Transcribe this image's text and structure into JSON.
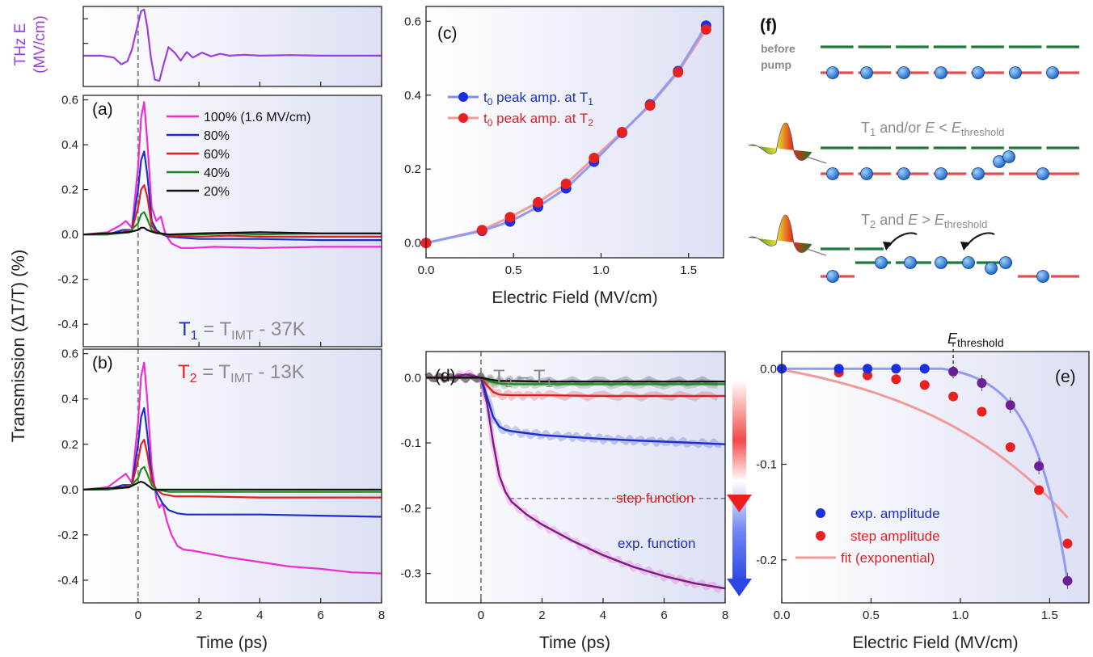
{
  "colors": {
    "magenta": "#ee2bd4",
    "blue": "#1a2fc8",
    "red": "#e02020",
    "green": "#1e8a1e",
    "black": "#111111",
    "violet": "#9a3fe0",
    "gray_text": "#8a8a8a",
    "bg_tint": "#e3e6f6"
  },
  "shared": {
    "ylabel": "Transmission (ΔT/T) (%)",
    "time_xlabel": "Time (ps)",
    "field_xlabel": "Electric Field (MV/cm)"
  },
  "chart_data": [
    {
      "id": "thz",
      "type": "line",
      "ylabel": "THz E (MV/cm)",
      "ylabel_lines": [
        "THz E",
        "(MV/cm)"
      ],
      "xlim": [
        -1.8,
        8
      ],
      "ylim": [
        -1.0,
        1.6
      ],
      "series": [
        {
          "color": "violet",
          "x": [
            -1.8,
            -1.2,
            -0.8,
            -0.55,
            -0.35,
            -0.2,
            0,
            0.1,
            0.2,
            0.3,
            0.42,
            0.55,
            0.7,
            0.85,
            1.0,
            1.2,
            1.4,
            1.6,
            1.8,
            2.1,
            2.4,
            2.7,
            3.0,
            3.5,
            4,
            5,
            6,
            7,
            8
          ],
          "y": [
            0,
            0,
            -0.06,
            -0.28,
            -0.18,
            0.2,
            1.05,
            1.45,
            1.5,
            0.95,
            -0.05,
            -0.78,
            -0.82,
            -0.25,
            0.28,
            0.1,
            -0.16,
            0.12,
            -0.06,
            0.1,
            -0.02,
            0.06,
            0,
            0.03,
            0,
            0.02,
            0,
            0,
            0
          ]
        }
      ]
    },
    {
      "id": "a",
      "type": "line",
      "panel_label": "(a)",
      "xlim": [
        -1.8,
        8
      ],
      "ylim": [
        -0.5,
        0.62
      ],
      "yticks": [
        -0.4,
        -0.2,
        0.0,
        0.2,
        0.4,
        0.6
      ],
      "xticks": [
        0,
        2,
        4,
        6,
        8
      ],
      "annotation": "T1 = TIMT - 37K",
      "legend": [
        "100% (1.6 MV/cm)",
        "80%",
        "60%",
        "40%",
        "20%"
      ],
      "series": [
        {
          "name": "100% (1.6 MV/cm)",
          "color": "magenta",
          "x": [
            -1.8,
            -1.0,
            -0.6,
            -0.4,
            -0.2,
            0,
            0.1,
            0.2,
            0.3,
            0.45,
            0.6,
            0.75,
            0.9,
            1.1,
            1.4,
            1.8,
            2.5,
            4,
            6,
            8
          ],
          "y": [
            0,
            0.01,
            0.04,
            0.06,
            0.03,
            0.3,
            0.52,
            0.59,
            0.42,
            0.12,
            0.06,
            0.08,
            0.0,
            -0.04,
            -0.06,
            -0.06,
            -0.055,
            -0.06,
            -0.055,
            -0.055
          ]
        },
        {
          "name": "80%",
          "color": "blue",
          "x": [
            -1.8,
            -1.0,
            -0.5,
            -0.2,
            0,
            0.1,
            0.2,
            0.3,
            0.45,
            0.6,
            0.8,
            1.0,
            1.5,
            2,
            3,
            4,
            6,
            8
          ],
          "y": [
            0,
            0,
            0.02,
            0.02,
            0.2,
            0.33,
            0.37,
            0.27,
            0.06,
            0.02,
            0.0,
            -0.01,
            -0.015,
            -0.02,
            -0.02,
            -0.02,
            -0.025,
            -0.025
          ]
        },
        {
          "name": "60%",
          "color": "red",
          "x": [
            -1.8,
            -1.0,
            -0.5,
            -0.2,
            0,
            0.1,
            0.2,
            0.3,
            0.45,
            0.6,
            1.0,
            2,
            3,
            4,
            6,
            8
          ],
          "y": [
            0,
            0,
            0.01,
            0.02,
            0.12,
            0.2,
            0.22,
            0.17,
            0.04,
            0.01,
            -0.005,
            -0.01,
            -0.005,
            -0.01,
            -0.01,
            -0.01
          ]
        },
        {
          "name": "40%",
          "color": "green",
          "x": [
            -1.8,
            -1.0,
            -0.3,
            0,
            0.1,
            0.2,
            0.3,
            0.45,
            0.6,
            1,
            2,
            3,
            4,
            6,
            8
          ],
          "y": [
            0,
            0,
            0.01,
            0.05,
            0.09,
            0.1,
            0.07,
            0.02,
            0.005,
            0,
            0,
            0.005,
            0,
            0.005,
            0.005
          ]
        },
        {
          "name": "20%",
          "color": "black",
          "x": [
            -1.8,
            -1.0,
            -0.3,
            0,
            0.1,
            0.2,
            0.3,
            0.5,
            1,
            2,
            4,
            6,
            8
          ],
          "y": [
            0,
            0.005,
            0.01,
            0.02,
            0.03,
            0.03,
            0.02,
            0.01,
            0.0,
            0.005,
            0.01,
            0.005,
            0.005
          ]
        }
      ]
    },
    {
      "id": "b",
      "type": "line",
      "panel_label": "(b)",
      "xlim": [
        -1.8,
        8
      ],
      "ylim": [
        -0.5,
        0.62
      ],
      "yticks": [
        -0.4,
        -0.2,
        0.0,
        0.2,
        0.4,
        0.6
      ],
      "xticks": [
        0,
        2,
        4,
        6,
        8
      ],
      "annotation": "T2 = TIMT - 13K",
      "series": [
        {
          "name": "100%",
          "color": "magenta",
          "x": [
            -1.8,
            -1.0,
            -0.6,
            -0.4,
            -0.2,
            0,
            0.1,
            0.2,
            0.3,
            0.45,
            0.6,
            0.7,
            0.8,
            0.95,
            1.1,
            1.3,
            1.5,
            1.8,
            2.2,
            3,
            4,
            5,
            6,
            7,
            8
          ],
          "y": [
            0,
            0.01,
            0.05,
            0.07,
            0.03,
            0.3,
            0.5,
            0.56,
            0.4,
            0.1,
            -0.04,
            -0.08,
            -0.06,
            -0.14,
            -0.2,
            -0.25,
            -0.265,
            -0.27,
            -0.28,
            -0.3,
            -0.32,
            -0.34,
            -0.35,
            -0.365,
            -0.37
          ]
        },
        {
          "name": "80%",
          "color": "blue",
          "x": [
            -1.8,
            -1.0,
            -0.5,
            -0.2,
            0,
            0.1,
            0.2,
            0.3,
            0.45,
            0.6,
            0.8,
            1.0,
            1.3,
            1.6,
            2,
            3,
            4,
            6,
            8
          ],
          "y": [
            0,
            0,
            0.02,
            0.02,
            0.2,
            0.32,
            0.36,
            0.25,
            0.05,
            -0.01,
            -0.06,
            -0.09,
            -0.105,
            -0.11,
            -0.11,
            -0.11,
            -0.11,
            -0.115,
            -0.12
          ]
        },
        {
          "name": "60%",
          "color": "red",
          "x": [
            -1.8,
            -1.0,
            -0.5,
            -0.2,
            0,
            0.1,
            0.2,
            0.3,
            0.45,
            0.6,
            0.8,
            1.2,
            2,
            4,
            6,
            8
          ],
          "y": [
            0,
            0,
            0.01,
            0.02,
            0.13,
            0.2,
            0.22,
            0.16,
            0.04,
            0.0,
            -0.02,
            -0.03,
            -0.03,
            -0.035,
            -0.035,
            -0.035
          ]
        },
        {
          "name": "40%",
          "color": "green",
          "x": [
            -1.8,
            -1.0,
            -0.3,
            0,
            0.1,
            0.2,
            0.3,
            0.45,
            0.6,
            1,
            2,
            4,
            6,
            8
          ],
          "y": [
            0,
            0,
            0.01,
            0.05,
            0.09,
            0.1,
            0.07,
            0.02,
            0.0,
            -0.01,
            -0.01,
            -0.01,
            -0.01,
            -0.01
          ]
        },
        {
          "name": "20%",
          "color": "black",
          "x": [
            -1.8,
            -1.0,
            -0.3,
            0,
            0.1,
            0.2,
            0.3,
            0.5,
            1,
            2,
            4,
            6,
            8
          ],
          "y": [
            0,
            0.005,
            0.01,
            0.03,
            0.035,
            0.03,
            0.02,
            0.0,
            0,
            0,
            0,
            0,
            0
          ]
        }
      ]
    },
    {
      "id": "c",
      "type": "scatter",
      "panel_label": "(c)",
      "xlabel": "Electric Field (MV/cm)",
      "xlim": [
        0,
        1.7
      ],
      "ylim": [
        -0.04,
        0.64
      ],
      "xticks": [
        0.0,
        0.5,
        1.0,
        1.5
      ],
      "yticks": [
        0.0,
        0.2,
        0.4,
        0.6
      ],
      "legend_entries": [
        {
          "prefix": "t",
          "sub": "0",
          "text": " peak amp. at T",
          "tsub": "1"
        },
        {
          "prefix": "t",
          "sub": "0",
          "text": " peak amp. at T",
          "tsub": "2"
        }
      ],
      "series": [
        {
          "name": "t0 peak amp. at T1",
          "color": "blue",
          "x": [
            0,
            0.32,
            0.48,
            0.64,
            0.8,
            0.96,
            1.12,
            1.28,
            1.44,
            1.6
          ],
          "y": [
            0,
            0.033,
            0.058,
            0.098,
            0.148,
            0.22,
            0.298,
            0.375,
            0.465,
            0.588
          ]
        },
        {
          "name": "t0 peak amp. at T2",
          "color": "red",
          "x": [
            0,
            0.32,
            0.48,
            0.64,
            0.8,
            0.96,
            1.12,
            1.28,
            1.44,
            1.6
          ],
          "y": [
            0,
            0.035,
            0.07,
            0.11,
            0.16,
            0.23,
            0.3,
            0.372,
            0.462,
            0.578
          ]
        }
      ]
    },
    {
      "id": "d",
      "type": "line",
      "panel_label": "(d)",
      "annotation": "T2 – T1",
      "xlim": [
        -1.8,
        8
      ],
      "ylim": [
        -0.345,
        0.04
      ],
      "xticks": [
        0,
        2,
        4,
        6,
        8
      ],
      "yticks": [
        -0.3,
        -0.2,
        -0.1,
        0.0
      ],
      "step_label": "step function",
      "exp_label": "exp. function",
      "step_level": -0.185,
      "series": [
        {
          "color": "magenta",
          "x": [
            -1.8,
            -1,
            -0.5,
            0,
            0.2,
            0.4,
            0.6,
            0.8,
            1,
            1.5,
            2,
            3,
            4,
            5,
            6,
            7,
            8
          ],
          "y": [
            0,
            0,
            0.005,
            0,
            -0.04,
            -0.1,
            -0.15,
            -0.175,
            -0.19,
            -0.21,
            -0.225,
            -0.25,
            -0.272,
            -0.29,
            -0.304,
            -0.315,
            -0.323
          ]
        },
        {
          "color": "blue",
          "x": [
            -1.8,
            -1,
            0,
            0.2,
            0.4,
            0.6,
            0.8,
            1,
            1.5,
            2,
            3,
            4,
            5,
            6,
            7,
            8
          ],
          "y": [
            0,
            0,
            0,
            -0.03,
            -0.06,
            -0.075,
            -0.08,
            -0.082,
            -0.085,
            -0.088,
            -0.091,
            -0.094,
            -0.096,
            -0.098,
            -0.1,
            -0.102
          ]
        },
        {
          "color": "red",
          "x": [
            -1.8,
            -1,
            0,
            0.2,
            0.4,
            0.6,
            1,
            2,
            4,
            6,
            8
          ],
          "y": [
            0,
            0,
            0,
            -0.012,
            -0.022,
            -0.026,
            -0.027,
            -0.027,
            -0.028,
            -0.028,
            -0.028
          ]
        },
        {
          "color": "green",
          "x": [
            -1.8,
            -1,
            0,
            0.3,
            0.6,
            1,
            2,
            4,
            6,
            8
          ],
          "y": [
            0,
            0,
            0,
            -0.006,
            -0.009,
            -0.01,
            -0.01,
            -0.01,
            -0.01,
            -0.01
          ]
        },
        {
          "color": "black",
          "x": [
            -1.8,
            -1,
            0,
            0.3,
            0.6,
            1,
            2,
            4,
            6,
            8
          ],
          "y": [
            0,
            0,
            0,
            -0.003,
            -0.005,
            -0.005,
            -0.006,
            -0.006,
            -0.006,
            -0.006
          ]
        }
      ]
    },
    {
      "id": "e",
      "type": "scatter",
      "panel_label": "(e)",
      "xlabel": "Electric Field (MV/cm)",
      "xlim": [
        0,
        1.72
      ],
      "ylim": [
        -0.245,
        0.018
      ],
      "xticks": [
        0.0,
        0.5,
        1.0,
        1.5
      ],
      "yticks": [
        -0.2,
        -0.1,
        0.0
      ],
      "threshold_x": 0.96,
      "legend": [
        "exp. amplitude",
        "step amplitude",
        "fit (exponential)"
      ],
      "series": [
        {
          "name": "exp. amplitude",
          "color": "blue",
          "x": [
            0,
            0.32,
            0.48,
            0.64,
            0.8,
            0.96,
            1.12,
            1.28,
            1.44,
            1.6
          ],
          "y": [
            0,
            0,
            0,
            0,
            0,
            -0.003,
            -0.015,
            -0.038,
            -0.102,
            -0.222
          ]
        },
        {
          "name": "step amplitude",
          "color": "red",
          "x": [
            0,
            0.32,
            0.48,
            0.64,
            0.8,
            0.96,
            1.12,
            1.28,
            1.44,
            1.6
          ],
          "y": [
            0,
            -0.004,
            -0.007,
            -0.011,
            -0.017,
            -0.029,
            -0.045,
            -0.082,
            -0.127,
            -0.183
          ]
        }
      ]
    }
  ],
  "schematic": {
    "label": "(f)",
    "before_pump": "before\npump",
    "row2_label": "T1 and/or E < Ethreshold",
    "row3_label": "T2 and E > Ethreshold"
  }
}
